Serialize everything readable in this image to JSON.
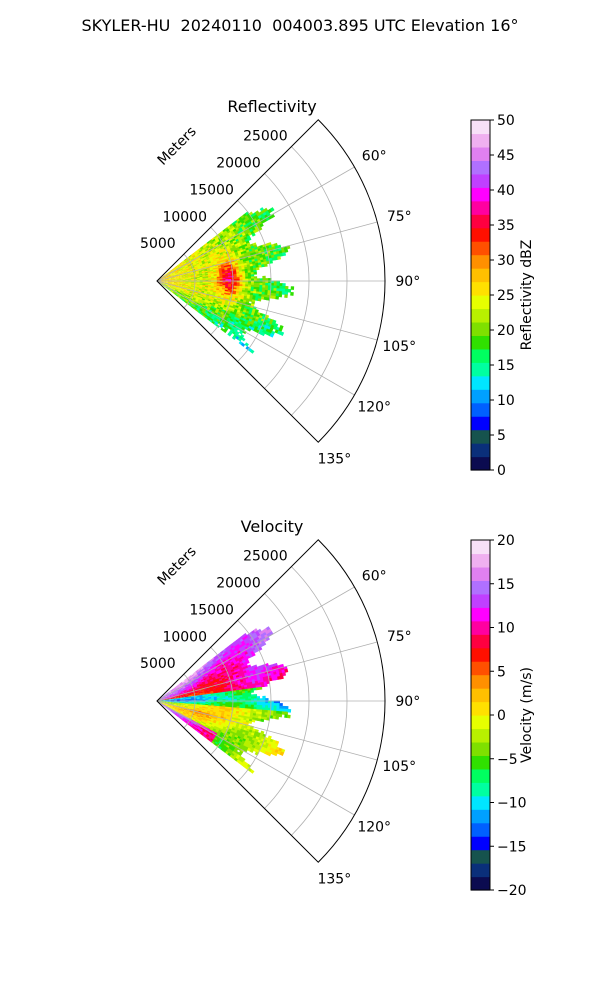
{
  "figure": {
    "title": "SKYLER-HU  20240110  004003.895 UTC Elevation 16°"
  },
  "chart_data": [
    {
      "type": "heatmap",
      "subtype": "polar-sector",
      "title": "Reflectivity",
      "radial_label": "Meters",
      "radial_ticks": [
        "5000",
        "10000",
        "15000",
        "20000",
        "25000"
      ],
      "radial_range": [
        0,
        30000
      ],
      "angle_ticks": [
        "60°",
        "75°",
        "90°",
        "105°",
        "120°",
        "135°"
      ],
      "angle_range_deg": [
        45,
        135
      ],
      "grid": true,
      "data_extent_m": 18000,
      "colorbar": {
        "label": "Reflectivity dBZ",
        "range": [
          0,
          50
        ],
        "ticks": [
          "0",
          "5",
          "10",
          "15",
          "20",
          "25",
          "30",
          "35",
          "40",
          "45",
          "50"
        ],
        "colors": [
          "#0b0b50",
          "#0a2f7a",
          "#16534e",
          "#0000ff",
          "#0060ff",
          "#00a0ff",
          "#00e6ff",
          "#00ffa0",
          "#00ff60",
          "#30e000",
          "#7fe000",
          "#b8f000",
          "#e6ff00",
          "#ffe000",
          "#ffc000",
          "#ff9000",
          "#ff5000",
          "#ff1000",
          "#ff0040",
          "#ff00a0",
          "#ff00ff",
          "#c040ff",
          "#b070ff",
          "#e080f0",
          "#f0b0f0",
          "#f8e0f8"
        ]
      },
      "field_description": [
        {
          "region": "near range core",
          "value_range_dbz": [
            25,
            33
          ]
        },
        {
          "region": "arc ~8000-11000 m, 75°-100°",
          "value_range_dbz": [
            33,
            45
          ]
        },
        {
          "region": "outer edge",
          "value_range_dbz": [
            15,
            22
          ]
        }
      ]
    },
    {
      "type": "heatmap",
      "subtype": "polar-sector",
      "title": "Velocity",
      "radial_label": "Meters",
      "radial_ticks": [
        "5000",
        "10000",
        "15000",
        "20000",
        "25000"
      ],
      "radial_range": [
        0,
        30000
      ],
      "angle_ticks": [
        "60°",
        "75°",
        "90°",
        "105°",
        "120°",
        "135°"
      ],
      "angle_range_deg": [
        45,
        135
      ],
      "grid": true,
      "data_extent_m": 18000,
      "colorbar": {
        "label": "Velocity (m/s)",
        "range": [
          -20,
          20
        ],
        "ticks": [
          "−20",
          "−15",
          "−10",
          "−5",
          "0",
          "5",
          "10",
          "15",
          "20"
        ],
        "colors": [
          "#0b0b50",
          "#0a2f7a",
          "#16534e",
          "#0000ff",
          "#0060ff",
          "#00a0ff",
          "#00e6ff",
          "#00ffa0",
          "#00ff60",
          "#30e000",
          "#7fe000",
          "#b8f000",
          "#e6ff00",
          "#ffe000",
          "#ffc000",
          "#ff9000",
          "#ff5000",
          "#ff1000",
          "#ff0040",
          "#ff00a0",
          "#ff00ff",
          "#c040ff",
          "#b070ff",
          "#e080f0",
          "#f0b0f0",
          "#f8e0f8"
        ]
      },
      "field_description": [
        {
          "region": "north-east of 82°",
          "value_range_ms": [
            5,
            15
          ]
        },
        {
          "region": "band near 85°-95°",
          "value_range_ms": [
            -12,
            -2
          ]
        },
        {
          "region": "south-east 98°-125°",
          "value_range_ms": [
            -5,
            3
          ]
        }
      ]
    }
  ]
}
